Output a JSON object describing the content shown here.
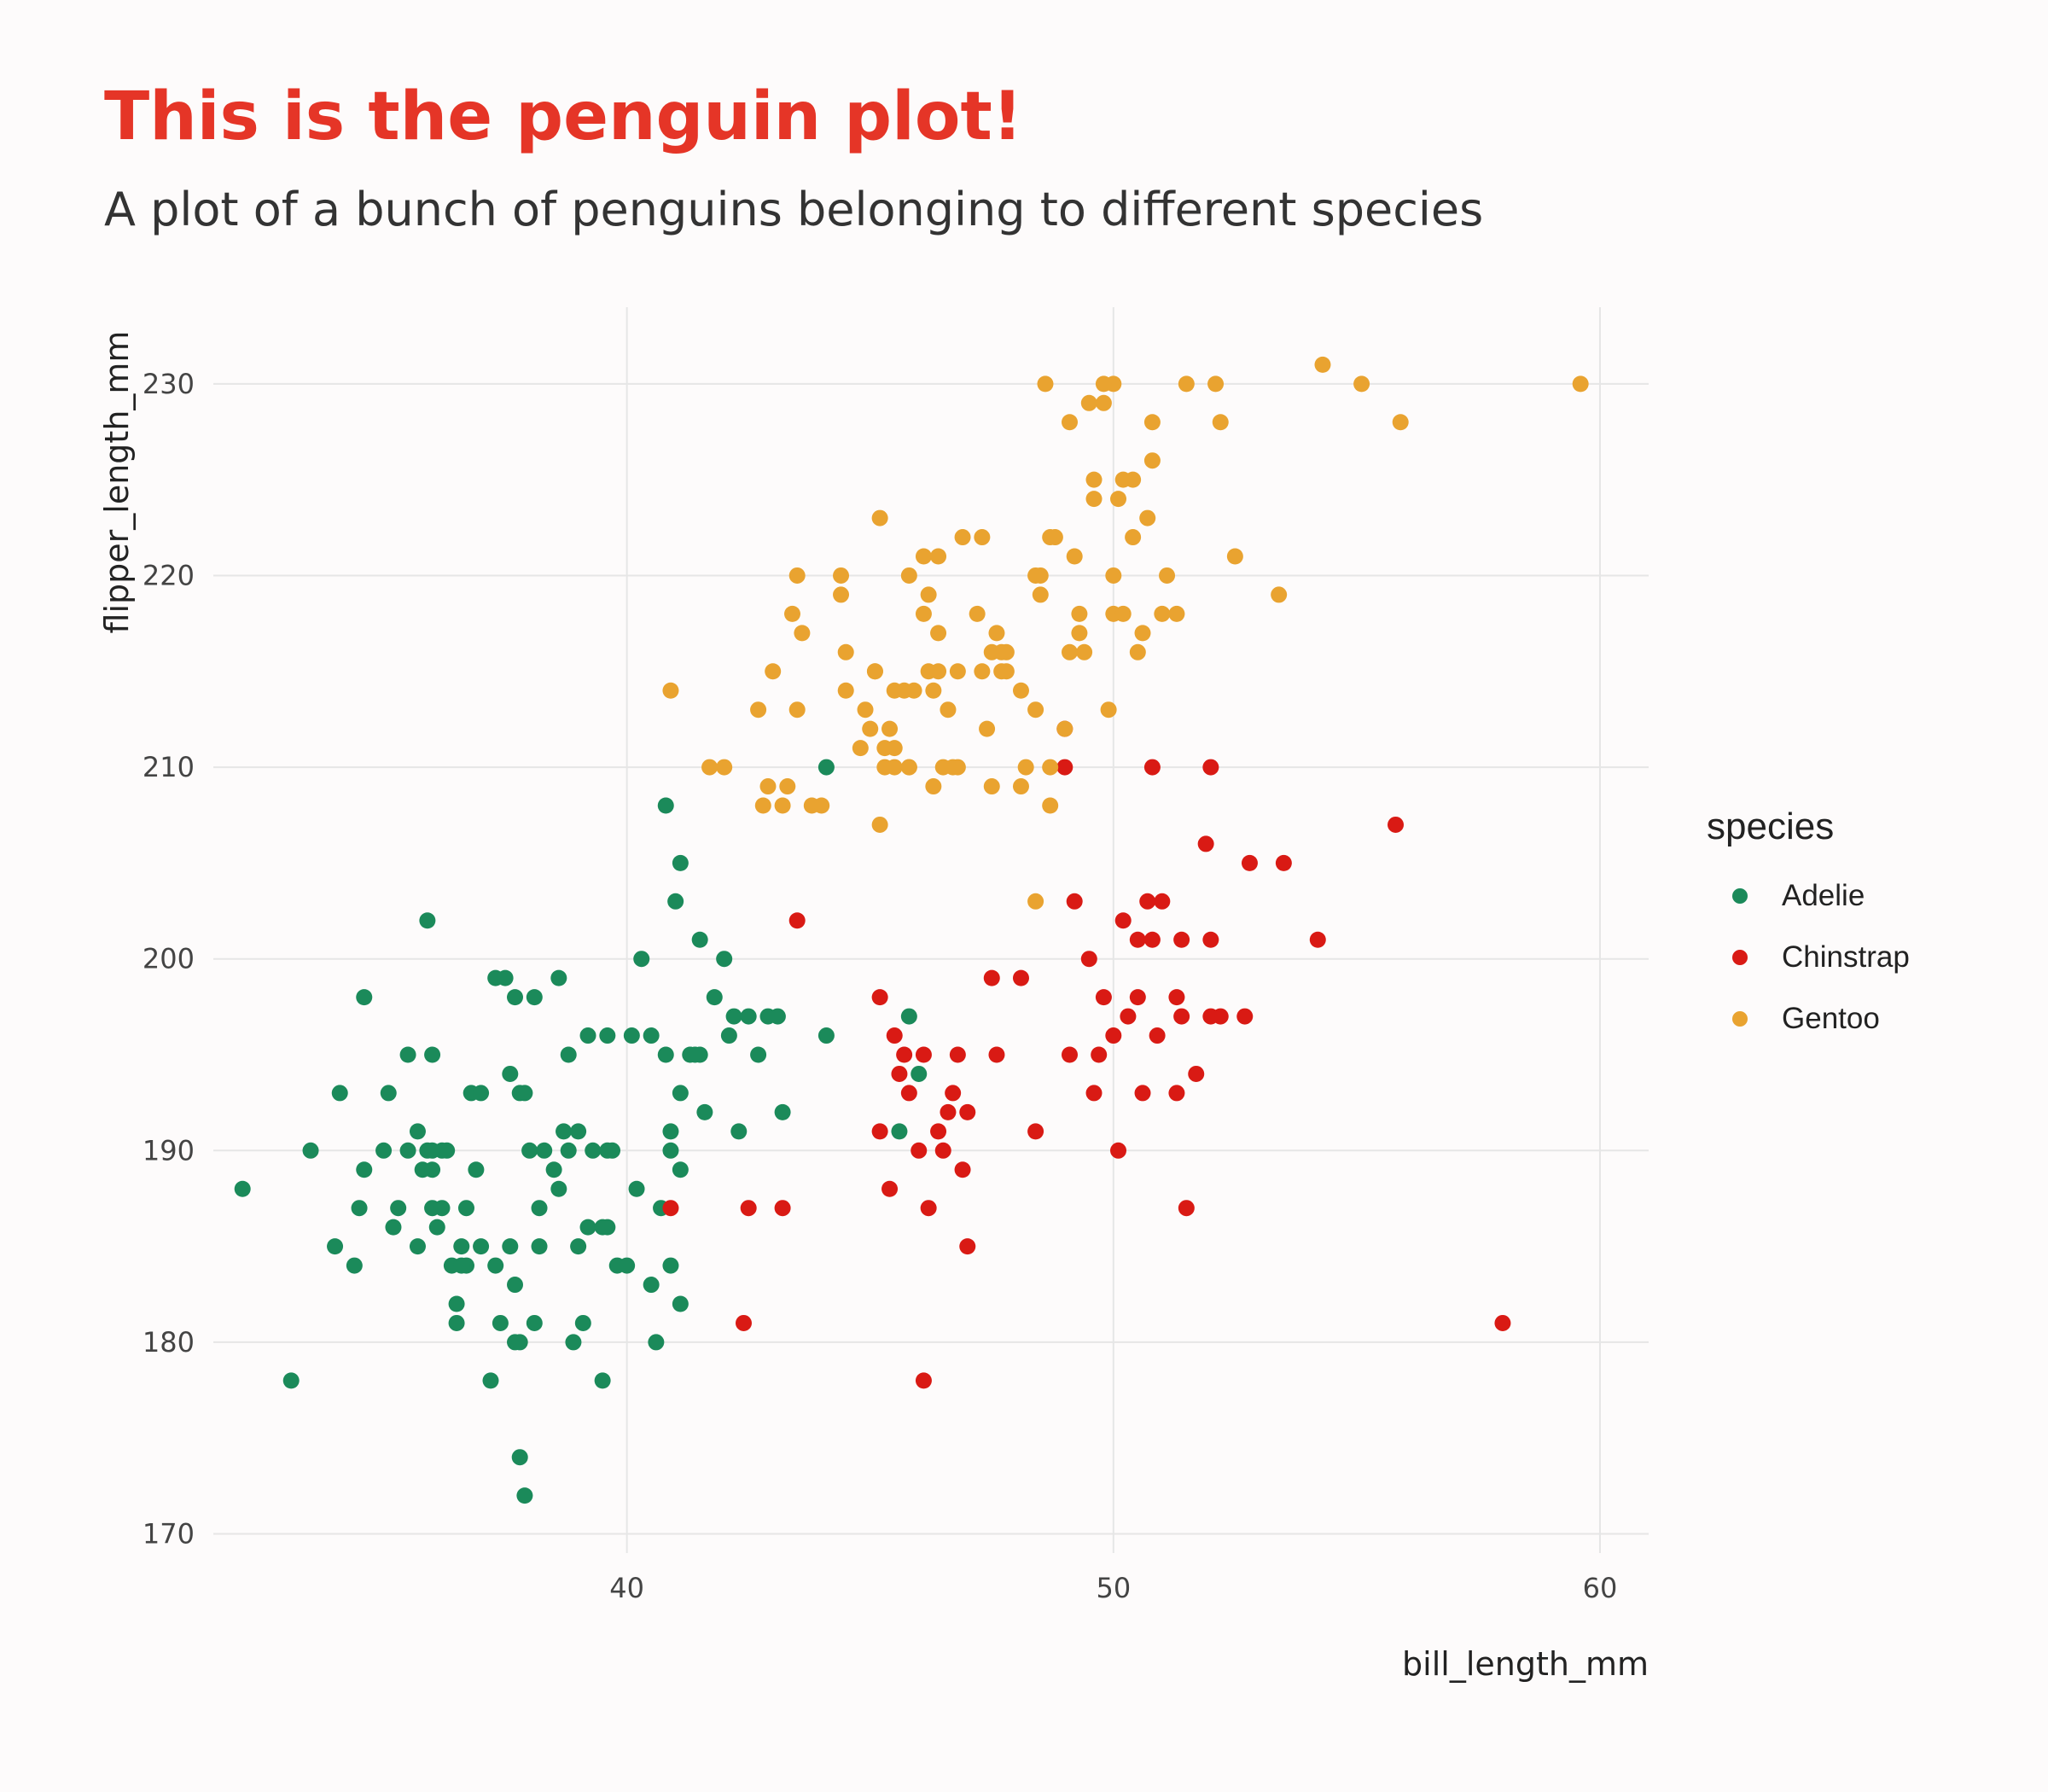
{
  "chart_data": {
    "type": "scatter",
    "title": "This is the penguin plot!",
    "subtitle": "A plot of a bunch of penguins belonging to different species",
    "xlabel": "bill_length_mm",
    "ylabel": "flipper_length_mm",
    "xlim": [
      31.5,
      61.0
    ],
    "ylim": [
      169.0,
      234.0
    ],
    "xticks": [
      40,
      50,
      60
    ],
    "yticks": [
      170,
      180,
      190,
      200,
      210,
      220,
      230
    ],
    "grid": true,
    "legend": {
      "title": "species",
      "placement": "right"
    },
    "series": [
      {
        "name": "Adelie",
        "color": "#1b8a5a",
        "points": [
          [
            32.1,
            188
          ],
          [
            33.1,
            178
          ],
          [
            33.5,
            190
          ],
          [
            34.0,
            185
          ],
          [
            34.1,
            193
          ],
          [
            34.4,
            184
          ],
          [
            34.5,
            187
          ],
          [
            34.6,
            189
          ],
          [
            34.6,
            198
          ],
          [
            35.0,
            190
          ],
          [
            35.1,
            193
          ],
          [
            35.2,
            186
          ],
          [
            35.3,
            187
          ],
          [
            35.5,
            190
          ],
          [
            35.5,
            195
          ],
          [
            35.7,
            185
          ],
          [
            35.7,
            191
          ],
          [
            35.8,
            189
          ],
          [
            35.9,
            190
          ],
          [
            35.9,
            202
          ],
          [
            36.0,
            187
          ],
          [
            36.0,
            189
          ],
          [
            36.0,
            195
          ],
          [
            36.1,
            186
          ],
          [
            36.2,
            187
          ],
          [
            36.2,
            190
          ],
          [
            36.3,
            190
          ],
          [
            36.4,
            184
          ],
          [
            36.5,
            182
          ],
          [
            36.5,
            181
          ],
          [
            36.6,
            185
          ],
          [
            36.7,
            184
          ],
          [
            36.7,
            187
          ],
          [
            36.8,
            193
          ],
          [
            36.9,
            189
          ],
          [
            37.0,
            185
          ],
          [
            37.0,
            193
          ],
          [
            37.3,
            184
          ],
          [
            37.3,
            199
          ],
          [
            37.4,
            181
          ],
          [
            37.5,
            199
          ],
          [
            37.6,
            185
          ],
          [
            37.6,
            194
          ],
          [
            37.7,
            180
          ],
          [
            37.7,
            183
          ],
          [
            37.8,
            174
          ],
          [
            37.8,
            193
          ],
          [
            37.9,
            172
          ],
          [
            38.0,
            190
          ],
          [
            38.1,
            181
          ],
          [
            38.2,
            187
          ],
          [
            38.2,
            185
          ],
          [
            38.3,
            190
          ],
          [
            38.5,
            189
          ],
          [
            38.6,
            188
          ],
          [
            38.7,
            191
          ],
          [
            38.8,
            195
          ],
          [
            38.9,
            180
          ],
          [
            39.0,
            185
          ],
          [
            39.0,
            191
          ],
          [
            39.1,
            181
          ],
          [
            39.2,
            196
          ],
          [
            39.3,
            190
          ],
          [
            39.5,
            178
          ],
          [
            39.6,
            186
          ],
          [
            39.7,
            190
          ],
          [
            39.8,
            184
          ],
          [
            40.0,
            184
          ],
          [
            40.2,
            188
          ],
          [
            40.3,
            200
          ],
          [
            40.5,
            196
          ],
          [
            40.6,
            180
          ],
          [
            40.7,
            187
          ],
          [
            40.8,
            195
          ],
          [
            40.9,
            191
          ],
          [
            41.0,
            203
          ],
          [
            41.1,
            182
          ],
          [
            41.1,
            205
          ],
          [
            41.3,
            195
          ],
          [
            41.5,
            201
          ],
          [
            41.5,
            195
          ],
          [
            41.6,
            192
          ],
          [
            41.8,
            198
          ],
          [
            42.0,
            200
          ],
          [
            42.2,
            197
          ],
          [
            42.3,
            191
          ],
          [
            42.5,
            197
          ],
          [
            42.7,
            195
          ],
          [
            42.9,
            197
          ],
          [
            43.1,
            197
          ],
          [
            44.1,
            210
          ],
          [
            45.6,
            191
          ],
          [
            45.8,
            197
          ],
          [
            46.0,
            194
          ],
          [
            36.6,
            184
          ],
          [
            37.2,
            178
          ],
          [
            37.7,
            198
          ],
          [
            38.1,
            198
          ],
          [
            38.6,
            199
          ],
          [
            39.2,
            186
          ],
          [
            39.5,
            186
          ],
          [
            40.1,
            196
          ],
          [
            40.5,
            183
          ],
          [
            40.9,
            184
          ],
          [
            41.1,
            193
          ],
          [
            41.4,
            195
          ],
          [
            42.1,
            196
          ],
          [
            43.2,
            192
          ],
          [
            44.1,
            196
          ],
          [
            37.8,
            180
          ],
          [
            39.6,
            196
          ],
          [
            40.8,
            208
          ],
          [
            36.0,
            190
          ],
          [
            37.9,
            193
          ],
          [
            38.8,
            190
          ],
          [
            41.1,
            189
          ],
          [
            40.9,
            190
          ],
          [
            39.6,
            190
          ]
        ]
      },
      {
        "name": "Chinstrap",
        "color": "#d91a14",
        "points": [
          [
            40.9,
            187
          ],
          [
            42.4,
            181
          ],
          [
            42.5,
            187
          ],
          [
            43.2,
            187
          ],
          [
            43.5,
            202
          ],
          [
            45.2,
            198
          ],
          [
            45.2,
            191
          ],
          [
            45.4,
            188
          ],
          [
            45.5,
            196
          ],
          [
            45.6,
            194
          ],
          [
            45.7,
            195
          ],
          [
            45.8,
            193
          ],
          [
            46.0,
            190
          ],
          [
            46.1,
            195
          ],
          [
            46.1,
            178
          ],
          [
            46.2,
            187
          ],
          [
            46.4,
            191
          ],
          [
            46.5,
            190
          ],
          [
            46.6,
            192
          ],
          [
            46.7,
            193
          ],
          [
            46.8,
            195
          ],
          [
            46.9,
            189
          ],
          [
            47.0,
            192
          ],
          [
            47.0,
            185
          ],
          [
            47.5,
            199
          ],
          [
            47.6,
            195
          ],
          [
            48.1,
            199
          ],
          [
            48.4,
            191
          ],
          [
            49.0,
            212
          ],
          [
            49.0,
            210
          ],
          [
            49.1,
            195
          ],
          [
            49.2,
            203
          ],
          [
            49.5,
            200
          ],
          [
            49.6,
            193
          ],
          [
            49.7,
            195
          ],
          [
            49.8,
            198
          ],
          [
            50.0,
            196
          ],
          [
            50.1,
            190
          ],
          [
            50.2,
            202
          ],
          [
            50.3,
            197
          ],
          [
            50.5,
            201
          ],
          [
            50.6,
            193
          ],
          [
            50.7,
            203
          ],
          [
            50.8,
            210
          ],
          [
            50.9,
            196
          ],
          [
            51.0,
            203
          ],
          [
            51.3,
            198
          ],
          [
            51.4,
            201
          ],
          [
            51.5,
            187
          ],
          [
            51.7,
            194
          ],
          [
            51.9,
            206
          ],
          [
            52.0,
            201
          ],
          [
            52.2,
            197
          ],
          [
            52.7,
            197
          ],
          [
            52.8,
            205
          ],
          [
            53.5,
            205
          ],
          [
            54.2,
            201
          ],
          [
            55.8,
            207
          ],
          [
            58.0,
            181
          ],
          [
            50.5,
            198
          ],
          [
            51.4,
            197
          ],
          [
            52.0,
            197
          ],
          [
            50.8,
            201
          ],
          [
            52.0,
            210
          ],
          [
            51.3,
            193
          ]
        ]
      },
      {
        "name": "Gentoo",
        "color": "#e9a330",
        "points": [
          [
            40.9,
            214
          ],
          [
            41.7,
            210
          ],
          [
            42.0,
            210
          ],
          [
            42.7,
            213
          ],
          [
            42.8,
            208
          ],
          [
            42.9,
            209
          ],
          [
            43.0,
            215
          ],
          [
            43.2,
            208
          ],
          [
            43.3,
            209
          ],
          [
            43.4,
            218
          ],
          [
            43.5,
            220
          ],
          [
            43.6,
            217
          ],
          [
            43.8,
            208
          ],
          [
            44.0,
            208
          ],
          [
            44.4,
            219
          ],
          [
            44.5,
            214
          ],
          [
            44.5,
            216
          ],
          [
            44.9,
            213
          ],
          [
            45.0,
            212
          ],
          [
            45.1,
            215
          ],
          [
            45.2,
            207
          ],
          [
            45.2,
            223
          ],
          [
            45.3,
            210
          ],
          [
            45.4,
            212
          ],
          [
            45.5,
            211
          ],
          [
            45.5,
            210
          ],
          [
            45.7,
            214
          ],
          [
            45.8,
            210
          ],
          [
            45.9,
            214
          ],
          [
            46.1,
            218
          ],
          [
            46.2,
            215
          ],
          [
            46.3,
            214
          ],
          [
            46.4,
            217
          ],
          [
            46.5,
            210
          ],
          [
            46.6,
            213
          ],
          [
            46.7,
            210
          ],
          [
            46.8,
            215
          ],
          [
            47.2,
            218
          ],
          [
            47.3,
            215
          ],
          [
            47.4,
            212
          ],
          [
            47.5,
            209
          ],
          [
            47.6,
            217
          ],
          [
            47.7,
            215
          ],
          [
            47.8,
            216
          ],
          [
            48.1,
            209
          ],
          [
            48.2,
            210
          ],
          [
            48.4,
            213
          ],
          [
            48.5,
            220
          ],
          [
            48.6,
            230
          ],
          [
            48.7,
            208
          ],
          [
            48.8,
            222
          ],
          [
            49.0,
            212
          ],
          [
            49.1,
            228
          ],
          [
            49.3,
            217
          ],
          [
            49.4,
            216
          ],
          [
            49.5,
            229
          ],
          [
            49.6,
            224
          ],
          [
            49.8,
            229
          ],
          [
            49.9,
            213
          ],
          [
            50.0,
            220
          ],
          [
            50.1,
            224
          ],
          [
            50.2,
            225
          ],
          [
            50.4,
            222
          ],
          [
            50.5,
            216
          ],
          [
            50.7,
            223
          ],
          [
            50.8,
            226
          ],
          [
            51.1,
            220
          ],
          [
            51.3,
            218
          ],
          [
            51.5,
            230
          ],
          [
            52.1,
            230
          ],
          [
            52.2,
            228
          ],
          [
            52.5,
            221
          ],
          [
            53.4,
            219
          ],
          [
            54.3,
            231
          ],
          [
            55.1,
            230
          ],
          [
            55.9,
            228
          ],
          [
            59.6,
            230
          ],
          [
            45.1,
            215
          ],
          [
            45.5,
            214
          ],
          [
            46.1,
            221
          ],
          [
            46.4,
            221
          ],
          [
            46.9,
            222
          ],
          [
            47.3,
            222
          ],
          [
            48.7,
            222
          ],
          [
            49.2,
            221
          ],
          [
            49.6,
            225
          ],
          [
            50.0,
            230
          ],
          [
            50.4,
            225
          ],
          [
            50.8,
            228
          ],
          [
            48.4,
            203
          ],
          [
            44.4,
            220
          ],
          [
            43.5,
            213
          ],
          [
            45.8,
            220
          ],
          [
            46.2,
            219
          ],
          [
            48.4,
            220
          ],
          [
            50.0,
            218
          ],
          [
            49.1,
            216
          ],
          [
            47.8,
            215
          ],
          [
            46.8,
            210
          ],
          [
            45.3,
            211
          ],
          [
            48.1,
            214
          ],
          [
            49.3,
            218
          ],
          [
            47.5,
            216
          ],
          [
            46.4,
            215
          ],
          [
            45.8,
            210
          ],
          [
            44.8,
            211
          ],
          [
            48.7,
            210
          ],
          [
            50.2,
            218
          ],
          [
            50.6,
            217
          ],
          [
            51.0,
            218
          ],
          [
            46.3,
            209
          ],
          [
            47.7,
            216
          ],
          [
            49.8,
            230
          ],
          [
            48.5,
            219
          ]
        ]
      }
    ]
  }
}
